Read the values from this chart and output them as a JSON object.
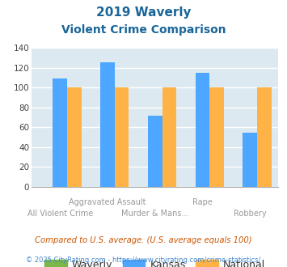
{
  "title_line1": "2019 Waverly",
  "title_line2": "Violent Crime Comparison",
  "categories": [
    "All Violent Crime",
    "Aggravated Assault",
    "Murder & Mans...",
    "Rape",
    "Robbery"
  ],
  "waverly": [
    0,
    0,
    0,
    0,
    0
  ],
  "kansas": [
    109,
    126,
    72,
    115,
    55
  ],
  "national": [
    100,
    100,
    100,
    100,
    100
  ],
  "waverly_color": "#7ab648",
  "kansas_color": "#4da6ff",
  "national_color": "#ffb347",
  "ylim": [
    0,
    140
  ],
  "yticks": [
    0,
    20,
    40,
    60,
    80,
    100,
    120,
    140
  ],
  "background_color": "#dce9f0",
  "grid_color": "#ffffff",
  "title_color": "#1a6699",
  "xlabel_color": "#999999",
  "footer_note": "Compared to U.S. average. (U.S. average equals 100)",
  "footer_credit": "© 2025 CityRating.com - https://www.cityrating.com/crime-statistics/",
  "footer_note_color": "#cc5500",
  "footer_credit_color": "#4488cc",
  "bar_width": 0.3
}
